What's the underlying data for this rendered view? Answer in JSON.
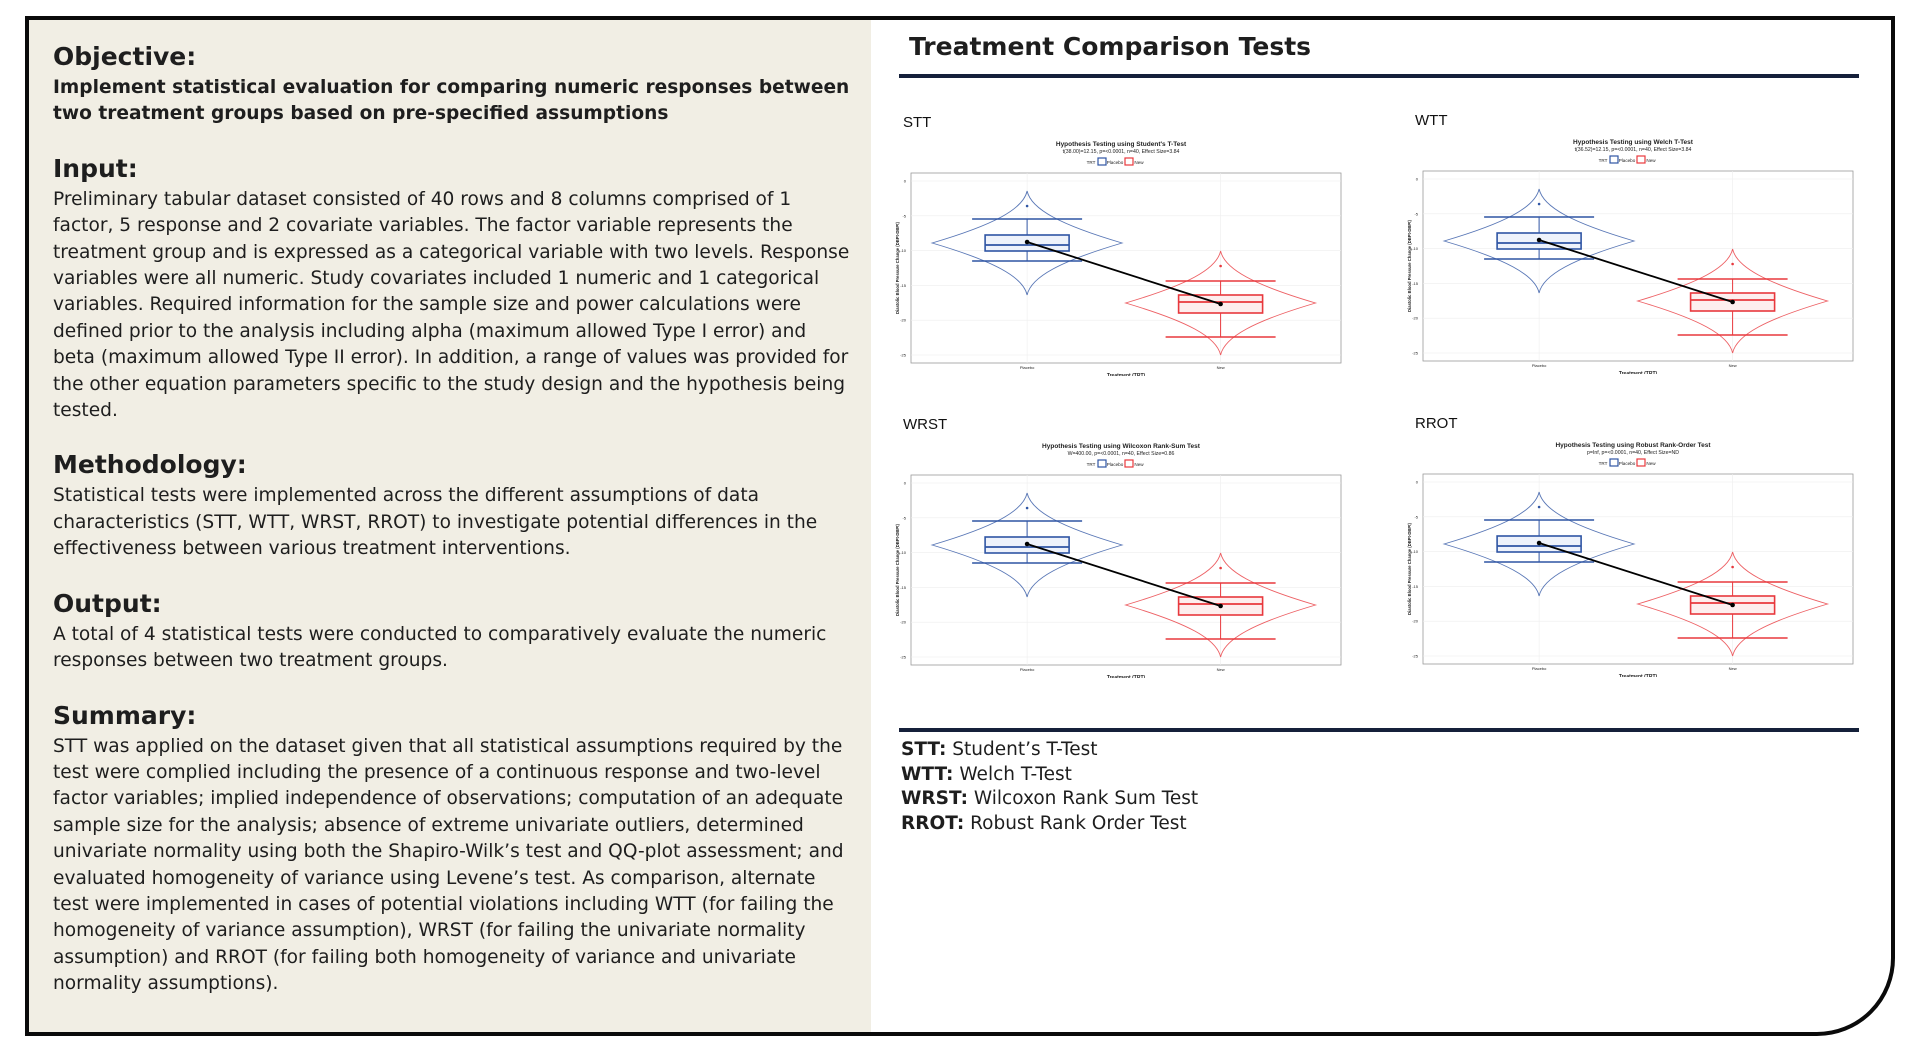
{
  "sections": {
    "objective": {
      "heading": "Objective:",
      "text": "Implement statistical evaluation for comparing numeric responses between two treatment groups based on pre-specified assumptions"
    },
    "input": {
      "heading": "Input:",
      "text": "Preliminary tabular dataset consisted of 40 rows and 8 columns comprised of 1 factor, 5 response and 2 covariate variables. The factor variable represents the treatment group and is expressed as a categorical variable with two levels. Response variables were all numeric. Study covariates included 1 numeric and 1 categorical variables. Required information for the sample size and power calculations were defined prior to the analysis including alpha (maximum allowed Type I error) and beta (maximum allowed Type II error). In addition, a range of values was provided for the other equation parameters specific to the study design and the hypothesis being tested."
    },
    "methodology": {
      "heading": "Methodology:",
      "text": "Statistical tests were implemented across the different assumptions of data characteristics (STT, WTT, WRST, RROT) to investigate potential differences in the effectiveness between various treatment interventions."
    },
    "output": {
      "heading": "Output:",
      "text": "A total of 4 statistical tests were conducted to comparatively evaluate the numeric responses between two treatment groups."
    },
    "summary": {
      "heading": "Summary:",
      "text": "STT was applied on the dataset given that all statistical assumptions required by the test were complied including the presence of a continuous response and two-level factor variables; implied independence of observations; computation of an adequate sample size for the analysis; absence of extreme univariate outliers, determined univariate normality using both the Shapiro-Wilk’s test and QQ-plot assessment; and evaluated homogeneity of variance using Levene’s test. As comparison, alternate test were implemented in cases of potential violations including WTT (for failing the homogeneity of variance assumption), WRST (for failing the univariate normality assumption) and RROT (for failing both homogeneity of variance  and univariate normality assumptions)."
    }
  },
  "right": {
    "title": "Treatment Comparison Tests",
    "panels": [
      {
        "label": "STT",
        "title": "Hypothesis Testing using Student's T-Test",
        "subtitle": "t(38.00)=12.15, p=<0.0001, n=40, Effect Size=3.84"
      },
      {
        "label": "WTT",
        "title": "Hypothesis Testing using Welch T-Test",
        "subtitle": "t(36.52)=12.15, p=<0.0001, n=40, Effect Size=3.84"
      },
      {
        "label": "WRST",
        "title": "Hypothesis Testing using Wilcoxon Rank-Sum Test",
        "subtitle": "W=400.00, p=<0.0001, n=40, Effect Size=0.86"
      },
      {
        "label": "RROT",
        "title": "Hypothesis Testing using Robust Rank-Order Test",
        "subtitle": "p=Inf, p=<0.0001, n=40, Effect Size=ND"
      }
    ],
    "plot_common": {
      "legend_title": "TRT",
      "legend_items": [
        "Placebo",
        "New"
      ],
      "xlabel": "Treatment (TRT)",
      "ylabel": "Diastolic Blood Pressure Change (DBPt-DBPt)",
      "y_ticks": [
        "0",
        "-5",
        "-10",
        "-15",
        "-20",
        "-25"
      ],
      "categories": [
        "Placebo",
        "New"
      ],
      "colors": {
        "placebo": "#2f55a4",
        "new": "#e8383d"
      }
    },
    "abbreviations": [
      {
        "abbr": "STT:",
        "text": " Student’s T-Test"
      },
      {
        "abbr": "WTT:",
        "text": " Welch T-Test"
      },
      {
        "abbr": "WRST:",
        "text": " Wilcoxon Rank Sum Test"
      },
      {
        "abbr": "RROT:",
        "text": " Robust Rank Order Test"
      }
    ]
  }
}
